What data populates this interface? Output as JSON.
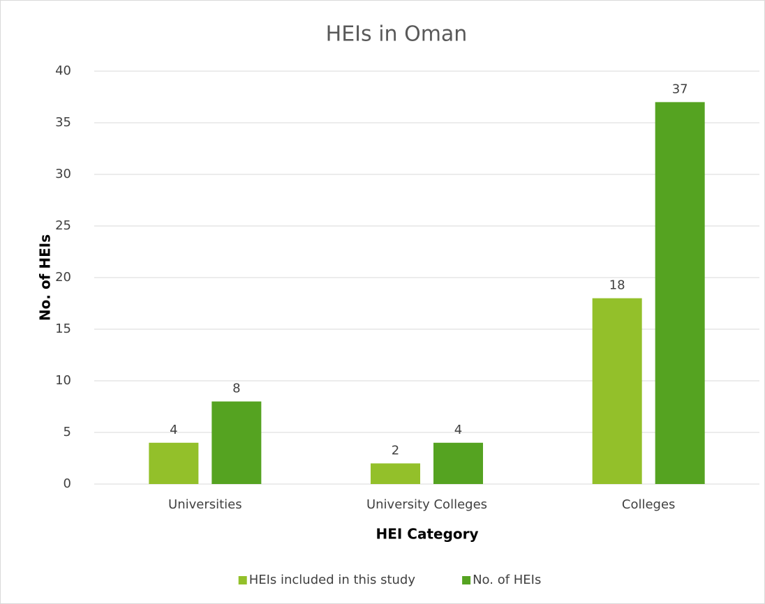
{
  "chart_data": {
    "type": "bar",
    "title": "HEIs in Oman",
    "x_label": "HEI Category",
    "y_label": "No. of HEIs",
    "categories": [
      "Universities",
      "University Colleges",
      "Colleges"
    ],
    "series": [
      {
        "name": "HEIs included in this study",
        "color": "#93c02a",
        "values": [
          4,
          2,
          18
        ]
      },
      {
        "name": "No. of HEIs",
        "color": "#55a321",
        "values": [
          8,
          4,
          37
        ]
      }
    ],
    "ylim": [
      0,
      40
    ],
    "yticks": [
      0,
      5,
      10,
      15,
      20,
      25,
      30,
      35,
      40
    ],
    "grid": true,
    "legend": "bottom"
  }
}
